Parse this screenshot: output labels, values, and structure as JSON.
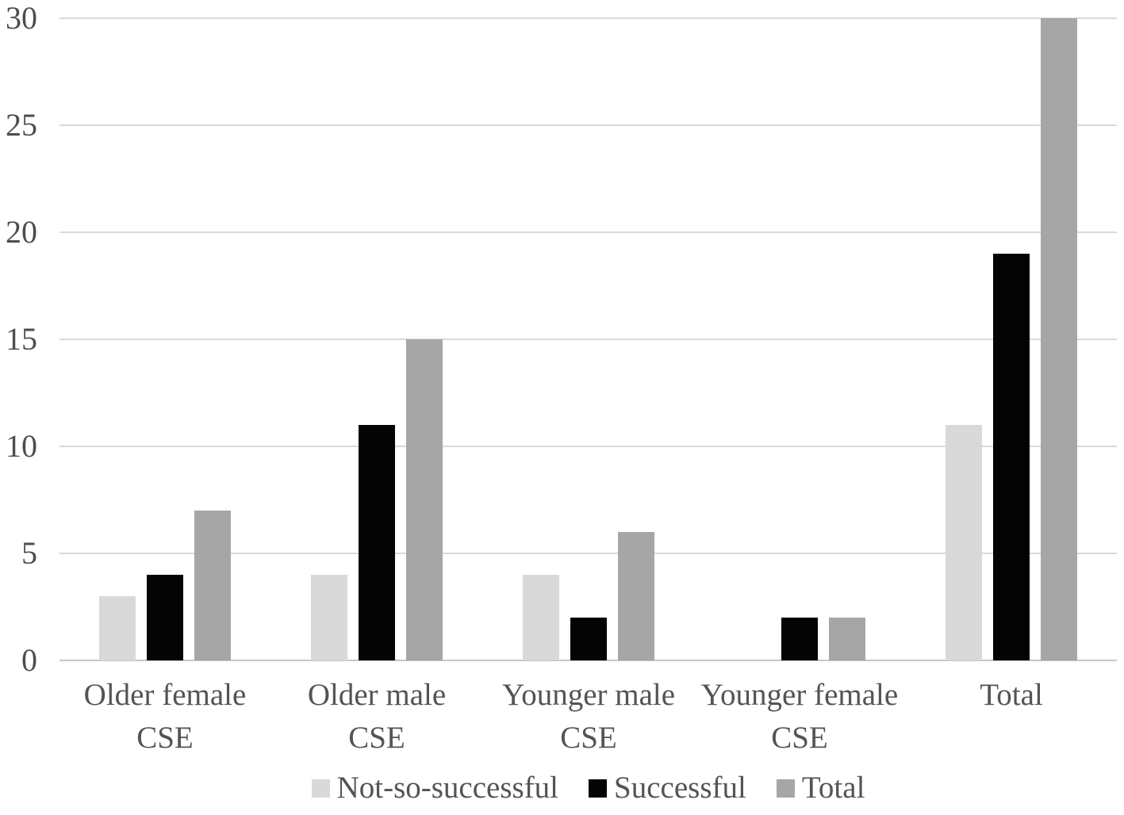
{
  "chart_data": {
    "type": "bar",
    "title": "",
    "xlabel": "",
    "ylabel": "",
    "categories": [
      "Older female CSE",
      "Older male CSE",
      "Younger male CSE",
      "Younger female CSE",
      "Total"
    ],
    "category_lines": [
      [
        "Older female",
        "CSE"
      ],
      [
        "Older male",
        "CSE"
      ],
      [
        "Younger male",
        "CSE"
      ],
      [
        "Younger female",
        "CSE"
      ],
      [
        "Total"
      ]
    ],
    "series": [
      {
        "name": "Not-so-successful",
        "color": "#d9d9d9",
        "values": [
          3,
          4,
          4,
          0,
          11
        ]
      },
      {
        "name": "Successful",
        "color": "#040404",
        "values": [
          4,
          11,
          2,
          2,
          19
        ]
      },
      {
        "name": "Total",
        "color": "#a6a6a6",
        "values": [
          7,
          15,
          6,
          2,
          30
        ]
      }
    ],
    "ylim": [
      0,
      30
    ],
    "yticks": [
      0,
      5,
      10,
      15,
      20,
      25,
      30
    ],
    "grid": true,
    "legend_position": "bottom"
  },
  "colors": {
    "background": "#ffffff",
    "gridline": "#d9d9d9",
    "axis_line": "#c6c6c6",
    "tick_text": "#4d4d4d",
    "label_text": "#545454"
  }
}
